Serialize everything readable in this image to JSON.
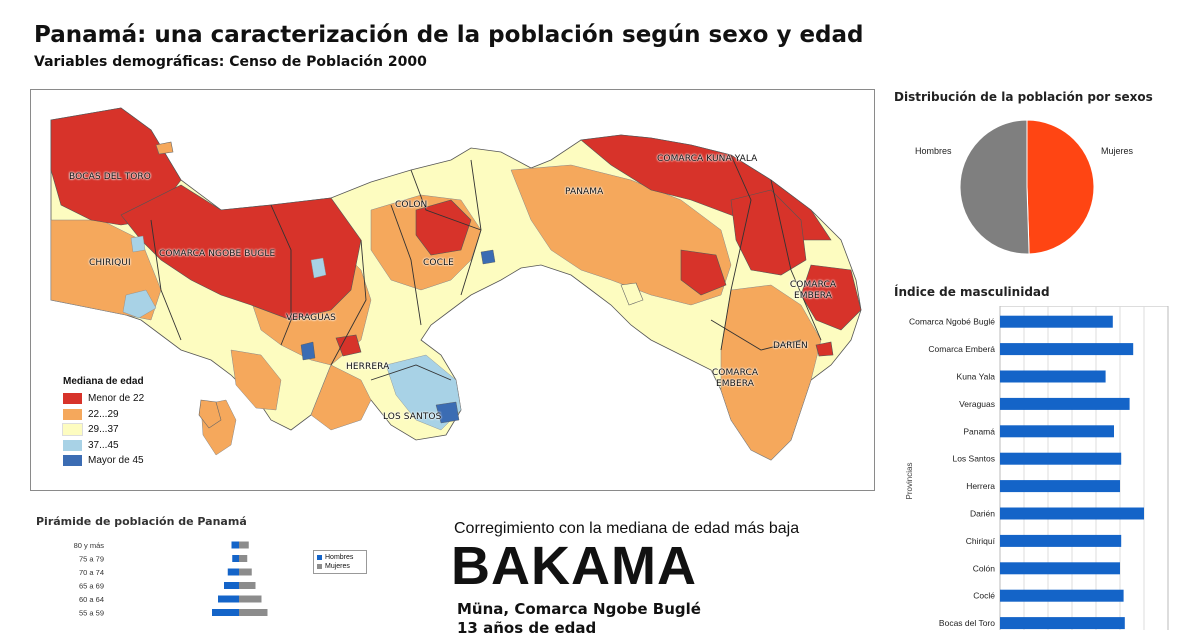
{
  "header": {
    "title": "Panamá: una caracterización de la población según sexo y edad",
    "subtitle": "Variables demográficas: Censo de Población 2000"
  },
  "map": {
    "legend_title": "Mediana de edad",
    "legend": [
      {
        "label": "Menor de 22",
        "color": "#d7332a"
      },
      {
        "label": "22...29",
        "color": "#f5a85c"
      },
      {
        "label": "29...37",
        "color": "#fdfcc0"
      },
      {
        "label": "37...45",
        "color": "#a8d2e6"
      },
      {
        "label": "Mayor de 45",
        "color": "#3b6cb3"
      }
    ],
    "regions": [
      {
        "label": "BOCAS DEL TORO"
      },
      {
        "label": "CHIRIQUI"
      },
      {
        "label": "COMARCA NGOBE BUGLE"
      },
      {
        "label": "VERAGUAS"
      },
      {
        "label": "COCLE"
      },
      {
        "label": "COLON"
      },
      {
        "label": "HERRERA"
      },
      {
        "label": "LOS SANTOS"
      },
      {
        "label": "PANAMA"
      },
      {
        "label": "COMARCA KUNA YALA"
      },
      {
        "label": "COMARCA EMBERA"
      },
      {
        "label": "DARIEN"
      },
      {
        "label": "COMARCA EMBERA"
      }
    ]
  },
  "pie_chart": {
    "title": "Distribución de la población por sexos",
    "chart_data": {
      "type": "pie",
      "slices": [
        {
          "name": "Hombres",
          "value": 50.5,
          "color": "#7f7f7f"
        },
        {
          "name": "Mujeres",
          "value": 49.5,
          "color": "#ff4513"
        }
      ]
    }
  },
  "bar_chart": {
    "title": "Índice de masculinidad",
    "chart_data": {
      "type": "bar",
      "orientation": "horizontal",
      "ylabel": "Provincias",
      "bar_color": "#1464c8",
      "categories": [
        "Comarca Ngobé Buglé",
        "Comarca Emberá",
        "Kuna Yala",
        "Veraguas",
        "Panamá",
        "Los Santos",
        "Herrera",
        "Darién",
        "Chiriquí",
        "Colón",
        "Coclé",
        "Bocas del Toro"
      ],
      "values": [
        94,
        111,
        88,
        108,
        95,
        101,
        100,
        120,
        101,
        100,
        103,
        104
      ],
      "xlim": [
        0,
        140
      ]
    }
  },
  "pyramid": {
    "title": "Pirámide de población de Panamá",
    "legend": [
      {
        "label": "Hombres",
        "color": "#1464c8"
      },
      {
        "label": "Mujeres",
        "color": "#8c8c8c"
      }
    ],
    "chart_data": {
      "type": "bar",
      "orientation": "horizontal-pyramid",
      "categories": [
        "80 y más",
        "75 a 79",
        "70 a 74",
        "65 a 69",
        "60 a 64",
        "55 a 59"
      ],
      "series": [
        {
          "name": "Hombres",
          "values": [
            1.0,
            0.9,
            1.5,
            2.0,
            2.8,
            3.6
          ]
        },
        {
          "name": "Mujeres",
          "values": [
            1.3,
            1.1,
            1.7,
            2.2,
            3.0,
            3.8
          ]
        }
      ]
    }
  },
  "highlight": {
    "heading": "Corregimiento con la mediana de edad más baja",
    "name": "BAKAMA",
    "place": "Müna, Comarca Ngobe Buglé",
    "age": "13 años de edad"
  }
}
